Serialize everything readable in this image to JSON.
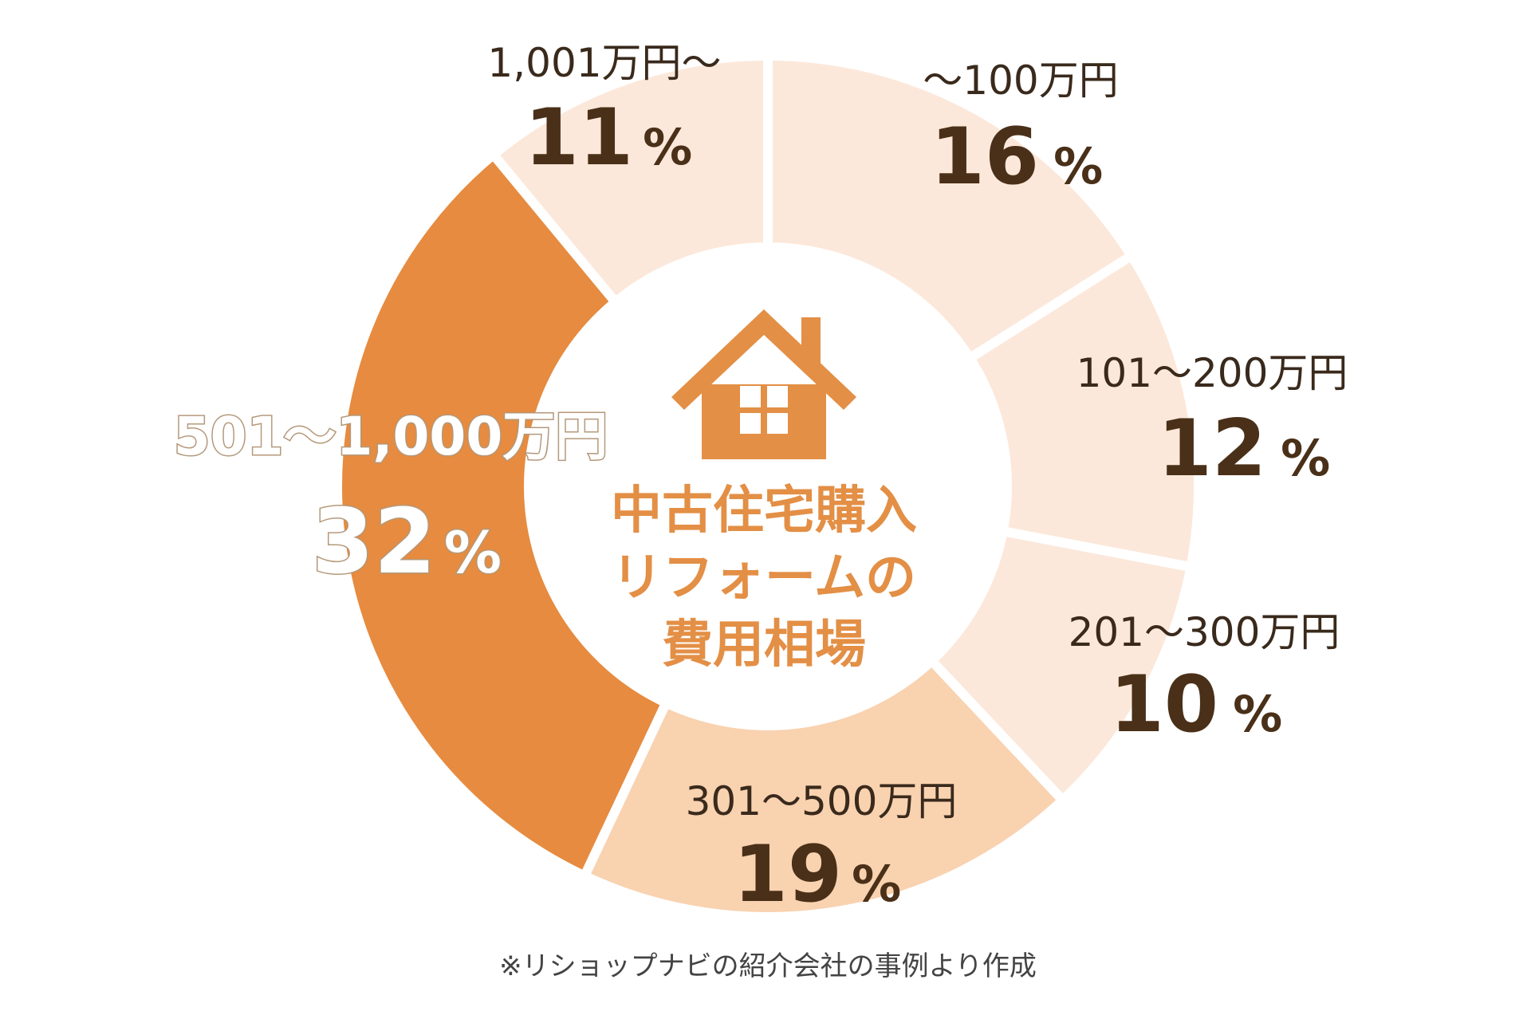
{
  "chart_data": {
    "type": "pie",
    "title": "中古住宅購入リフォームの費用相場",
    "title_lines": [
      "中古住宅購入",
      "リフォームの",
      "費用相場"
    ],
    "categories": [
      "〜100万円",
      "101〜200万円",
      "201〜300万円",
      "301〜500万円",
      "501〜1,000万円",
      "1,001万円〜"
    ],
    "values": [
      16,
      12,
      10,
      19,
      32,
      11
    ],
    "value_labels": [
      "16",
      "12",
      "10",
      "19",
      "32",
      "11"
    ],
    "unit": "%",
    "colors": [
      "#fce8da",
      "#fce8da",
      "#fce8da",
      "#f9d2b0",
      "#e68b3f",
      "#fce8da"
    ],
    "highlight_category": "501〜1,000万円",
    "center_icon": "house-icon",
    "legend": "none",
    "grid": false
  },
  "footnote": "※リショップナビの紹介会社の事例より作成"
}
